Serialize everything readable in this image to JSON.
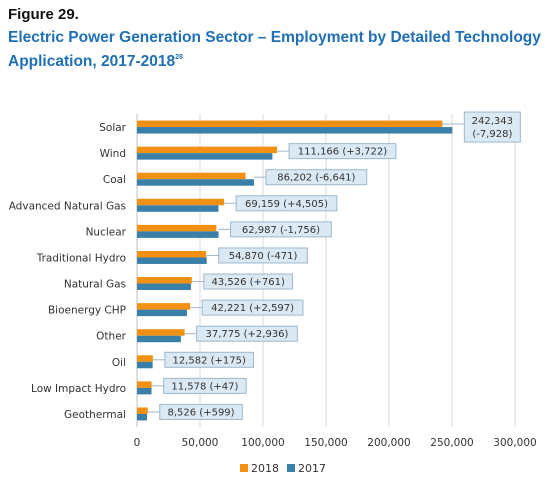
{
  "figure": {
    "label": "Figure 29.",
    "title": "Electric Power Generation Sector – Employment by Detailed Technology Application, 2017-2018",
    "footnote": "28"
  },
  "colors": {
    "s2018": "#f29111",
    "s2017": "#3a7fa8",
    "callout_fill": "#dbe9f4",
    "callout_stroke": "#9db8cc",
    "grid": "#d9d9d9"
  },
  "chart_data": {
    "type": "bar",
    "orientation": "horizontal",
    "categories": [
      "Solar",
      "Wind",
      "Coal",
      "Advanced Natural Gas",
      "Nuclear",
      "Traditional  Hydro",
      "Natural Gas",
      "Bioenergy CHP",
      "Other",
      "Oil",
      "Low Impact  Hydro",
      "Geothermal"
    ],
    "series": [
      {
        "name": "2018",
        "values": [
          242343,
          111166,
          86202,
          69159,
          62987,
          54870,
          43526,
          42221,
          37775,
          12582,
          11578,
          8526
        ]
      },
      {
        "name": "2017",
        "values": [
          250271,
          107444,
          92843,
          64654,
          64743,
          55341,
          42765,
          39624,
          34839,
          12407,
          11531,
          7927
        ]
      }
    ],
    "data_labels": [
      "242,343 (-7,928)",
      "111,166 (+3,722)",
      "86,202 (-6,641)",
      "69,159 (+4,505)",
      "62,987 (-1,756)",
      "54,870 (-471)",
      "43,526 (+761)",
      "42,221 (+2,597)",
      "37,775 (+2,936)",
      "12,582 (+175)",
      "11,578 (+47)",
      "8,526 (+599)"
    ],
    "data_label_lines": {
      "first_line": "242,343",
      "second_line": "(-7,928)"
    },
    "xlim": [
      0,
      300000
    ],
    "x_ticks": [
      0,
      50000,
      100000,
      150000,
      200000,
      250000,
      300000
    ],
    "x_tick_labels": [
      "0",
      "50,000",
      "100,000",
      "150,000",
      "200,000",
      "250,000",
      "300,000"
    ],
    "grid": true,
    "legend_position": "bottom-center",
    "xlabel": "",
    "ylabel": ""
  }
}
